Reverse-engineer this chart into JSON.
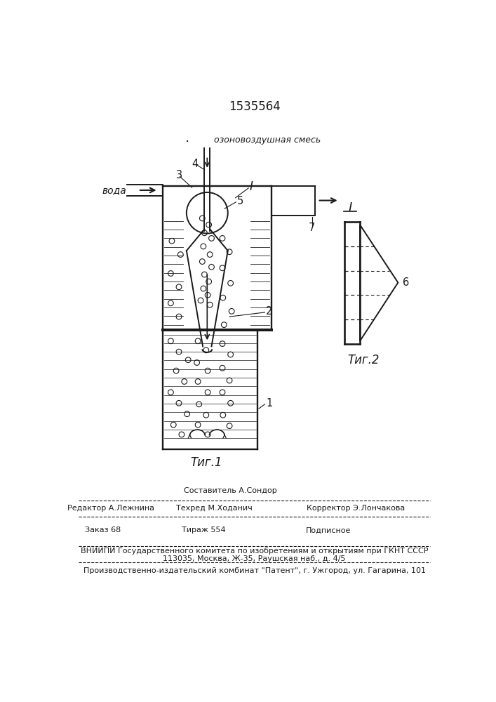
{
  "patent_number": "1535564",
  "fig1_label": "τиг.1",
  "fig2_label": "τиг.2",
  "ozone_label": "озоновоздушная смесь",
  "water_label": "вода",
  "section_label": "I",
  "label1": "1",
  "label2": "2",
  "label3": "3",
  "label4": "4",
  "label5": "5",
  "label6": "6",
  "label7": "7",
  "editor_line": "Редактор А.Лежнина",
  "composer_line": "Составитель А.Сондор",
  "techred_line": "Техред М.Ходанич",
  "corrector_line": "Корректор Э.Лончакова",
  "order_line": "Заказ 68",
  "tirazh_line": "Тираж 554",
  "podpisnoe_line": "Подписное",
  "vniiipi_line": "ВНИИПИ Государственного комитета по изобретениям и открытиям при ГКНТ СССР",
  "address_line": "113035, Москва, Ж-35, Раушская наб., д. 4/5",
  "production_line": "Производственно-издательский комбинат \"Патент\", г. Ужгород, ул. Гагарина, 101",
  "bg_color": "#ffffff",
  "line_color": "#1a1a1a"
}
